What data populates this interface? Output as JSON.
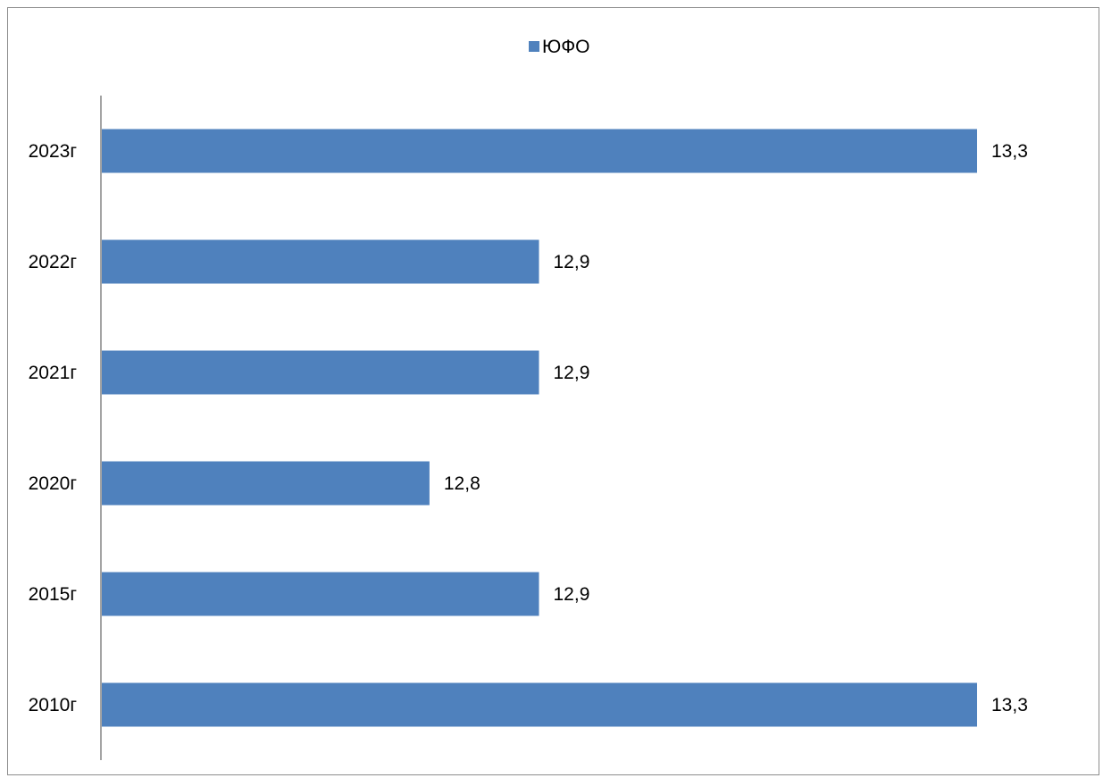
{
  "chart_data": {
    "type": "bar",
    "orientation": "horizontal",
    "categories": [
      "2010г",
      "2015г",
      "2020г",
      "2021г",
      "2022г",
      "2023г"
    ],
    "series": [
      {
        "name": "ЮФО",
        "values": [
          13.3,
          12.9,
          12.8,
          12.9,
          12.9,
          13.3
        ],
        "data_labels": [
          "13,3",
          "12,9",
          "12,8",
          "12,9",
          "12,9",
          "13,3"
        ],
        "color": "#4F81BD"
      }
    ],
    "title": "",
    "xlabel": "",
    "ylabel": "",
    "xlim": [
      12.5,
      13.3
    ],
    "legend": {
      "position": "top"
    },
    "grid": false,
    "axis_color": "#868686"
  }
}
